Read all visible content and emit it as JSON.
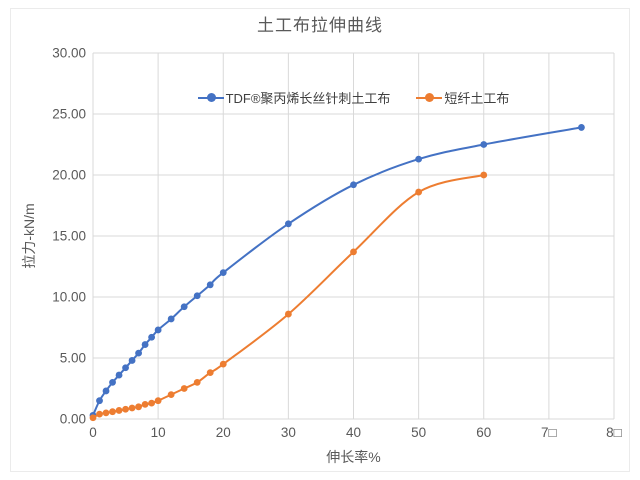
{
  "title": "土工布拉伸曲线",
  "axes": {
    "x": {
      "title": "伸长率%",
      "tick_labels": [
        "0",
        "10",
        "20",
        "30",
        "40",
        "50",
        "60",
        "7□",
        "8□"
      ],
      "tick_values": [
        0,
        10,
        20,
        30,
        40,
        50,
        60,
        70,
        80
      ]
    },
    "y": {
      "title": "拉力-kN/m",
      "tick_labels": [
        "0.00",
        "5.00",
        "10.00",
        "15.00",
        "20.00",
        "25.00",
        "30.00"
      ],
      "tick_values": [
        0,
        5,
        10,
        15,
        20,
        25,
        30
      ]
    }
  },
  "legend": {
    "items": [
      {
        "label": "TDF®聚丙烯长丝针刺土工布",
        "color": "#4472c4"
      },
      {
        "label": "短纤土工布",
        "color": "#ed7d31"
      }
    ]
  },
  "colors": {
    "grid": "#d9d9d9",
    "axis_text": "#595959",
    "title_text": "#595959",
    "frame_border": "#ebebeb",
    "series_blue": "#4472c4",
    "series_orange": "#ed7d31"
  },
  "chart_data": {
    "type": "line",
    "title": "土工布拉伸曲线",
    "xlabel": "伸长率%",
    "ylabel": "拉力-kN/m",
    "xlim": [
      0,
      80
    ],
    "ylim": [
      0,
      30
    ],
    "grid": true,
    "legend_position": "top-center-inside",
    "series": [
      {
        "name": "TDF®聚丙烯长丝针刺土工布",
        "color": "#4472c4",
        "marker": "circle",
        "x": [
          0,
          1,
          2,
          3,
          4,
          5,
          6,
          7,
          8,
          9,
          10,
          12,
          14,
          16,
          18,
          20,
          30,
          40,
          50,
          60,
          75
        ],
        "y": [
          0.3,
          1.5,
          2.3,
          3.0,
          3.6,
          4.2,
          4.8,
          5.4,
          6.1,
          6.7,
          7.3,
          8.2,
          9.2,
          10.1,
          11.0,
          12.0,
          16.0,
          19.2,
          21.3,
          22.5,
          23.9
        ]
      },
      {
        "name": "短纤土工布",
        "color": "#ed7d31",
        "marker": "circle",
        "x": [
          0,
          1,
          2,
          3,
          4,
          5,
          6,
          7,
          8,
          9,
          10,
          12,
          14,
          16,
          18,
          20,
          30,
          40,
          50,
          60
        ],
        "y": [
          0.1,
          0.4,
          0.5,
          0.6,
          0.7,
          0.8,
          0.9,
          1.0,
          1.2,
          1.3,
          1.5,
          2.0,
          2.5,
          3.0,
          3.8,
          4.5,
          8.6,
          13.7,
          18.6,
          20.0
        ]
      }
    ]
  }
}
